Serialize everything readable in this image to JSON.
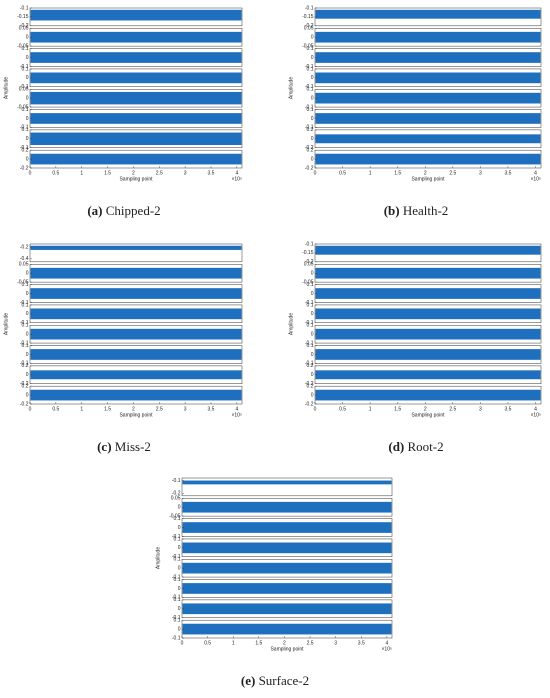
{
  "chart_data": {
    "type": "band",
    "xlabel": "Sampling point",
    "ylabel": "Amplitude",
    "x_scale_label": "×10⁵",
    "xlim": [
      0,
      4.1
    ],
    "xticks": [
      0,
      0.5,
      1,
      1.5,
      2,
      2.5,
      3,
      3.5,
      4
    ],
    "color": "#1f6fbf",
    "panels": [
      {
        "caption_label": "(a)",
        "caption_text": "Chipped-2",
        "plots": [
          {
            "ylim": [
              -0.2,
              -0.1
            ],
            "yticks": [
              -0.1,
              -0.15,
              -0.2
            ],
            "band": [
              -0.17,
              -0.11
            ]
          },
          {
            "ylim": [
              -0.05,
              0.05
            ],
            "yticks": [
              0.05,
              0,
              -0.05
            ],
            "band": [
              -0.03,
              0.03
            ]
          },
          {
            "ylim": [
              -0.1,
              0.1
            ],
            "yticks": [
              0.1,
              0,
              -0.1
            ],
            "band": [
              -0.06,
              0.06
            ]
          },
          {
            "ylim": [
              -0.1,
              0.1
            ],
            "yticks": [
              0.1,
              0,
              -0.1
            ],
            "band": [
              -0.06,
              0.06
            ]
          },
          {
            "ylim": [
              -0.05,
              0.05
            ],
            "yticks": [
              0.05,
              0,
              -0.05
            ],
            "band": [
              -0.035,
              0.035
            ]
          },
          {
            "ylim": [
              -0.1,
              0.1
            ],
            "yticks": [
              0.1,
              0,
              -0.1
            ],
            "band": [
              -0.06,
              0.06
            ]
          },
          {
            "ylim": [
              -0.1,
              0.1
            ],
            "yticks": [
              0.1,
              0,
              -0.1
            ],
            "band": [
              -0.07,
              0.07
            ]
          },
          {
            "ylim": [
              -0.2,
              0.2
            ],
            "yticks": [
              0.2,
              0,
              -0.2
            ],
            "band": [
              -0.12,
              0.12
            ]
          }
        ]
      },
      {
        "caption_label": "(b)",
        "caption_text": "Health-2",
        "plots": [
          {
            "ylim": [
              -0.2,
              -0.1
            ],
            "yticks": [
              -0.1,
              -0.15,
              -0.2
            ],
            "band": [
              -0.16,
              -0.11
            ]
          },
          {
            "ylim": [
              -0.05,
              0.05
            ],
            "yticks": [
              0.05,
              0,
              -0.05
            ],
            "band": [
              -0.03,
              0.03
            ]
          },
          {
            "ylim": [
              -0.1,
              0.1
            ],
            "yticks": [
              0.1,
              0,
              -0.1
            ],
            "band": [
              -0.06,
              0.06
            ]
          },
          {
            "ylim": [
              -0.1,
              0.1
            ],
            "yticks": [
              0.1,
              0,
              -0.1
            ],
            "band": [
              -0.06,
              0.06
            ]
          },
          {
            "ylim": [
              -0.1,
              0.1
            ],
            "yticks": [
              0.1,
              0,
              -0.1
            ],
            "band": [
              -0.06,
              0.06
            ]
          },
          {
            "ylim": [
              -0.1,
              0.1
            ],
            "yticks": [
              0.1,
              0,
              -0.1
            ],
            "band": [
              -0.06,
              0.06
            ]
          },
          {
            "ylim": [
              -0.2,
              0.2
            ],
            "yticks": [
              0.2,
              0,
              -0.2
            ],
            "band": [
              -0.1,
              0.1
            ]
          },
          {
            "ylim": [
              -0.2,
              0.2
            ],
            "yticks": [
              0.2,
              0,
              -0.2
            ],
            "band": [
              -0.12,
              0.12
            ]
          }
        ]
      },
      {
        "caption_label": "(c)",
        "caption_text": "Miss-2",
        "plots": [
          {
            "ylim": [
              -0.45,
              -0.15
            ],
            "yticks": [
              -0.2,
              -0.4
            ],
            "band": [
              -0.25,
              -0.18
            ]
          },
          {
            "ylim": [
              -0.05,
              0.05
            ],
            "yticks": [
              0.05,
              0,
              -0.05
            ],
            "band": [
              -0.03,
              0.03
            ]
          },
          {
            "ylim": [
              -0.1,
              0.1
            ],
            "yticks": [
              0.1,
              0,
              -0.1
            ],
            "band": [
              -0.06,
              0.06
            ]
          },
          {
            "ylim": [
              -0.1,
              0.1
            ],
            "yticks": [
              0.1,
              0,
              -0.1
            ],
            "band": [
              -0.06,
              0.06
            ]
          },
          {
            "ylim": [
              -0.1,
              0.1
            ],
            "yticks": [
              0.1,
              0,
              -0.1
            ],
            "band": [
              -0.06,
              0.06
            ]
          },
          {
            "ylim": [
              -0.1,
              0.1
            ],
            "yticks": [
              0.1,
              0,
              -0.1
            ],
            "band": [
              -0.06,
              0.06
            ]
          },
          {
            "ylim": [
              -0.2,
              0.2
            ],
            "yticks": [
              0.2,
              0,
              -0.2
            ],
            "band": [
              -0.1,
              0.1
            ]
          },
          {
            "ylim": [
              -0.2,
              0.2
            ],
            "yticks": [
              0.2,
              0,
              -0.2
            ],
            "band": [
              -0.12,
              0.12
            ]
          }
        ]
      },
      {
        "caption_label": "(d)",
        "caption_text": "Root-2",
        "plots": [
          {
            "ylim": [
              -0.2,
              -0.1
            ],
            "yticks": [
              -0.1,
              -0.15,
              -0.2
            ],
            "band": [
              -0.16,
              -0.11
            ]
          },
          {
            "ylim": [
              -0.05,
              0.05
            ],
            "yticks": [
              0.05,
              0,
              -0.05
            ],
            "band": [
              -0.03,
              0.03
            ]
          },
          {
            "ylim": [
              -0.1,
              0.1
            ],
            "yticks": [
              0.1,
              0,
              -0.1
            ],
            "band": [
              -0.06,
              0.06
            ]
          },
          {
            "ylim": [
              -0.1,
              0.1
            ],
            "yticks": [
              0.1,
              0,
              -0.1
            ],
            "band": [
              -0.06,
              0.06
            ]
          },
          {
            "ylim": [
              -0.1,
              0.1
            ],
            "yticks": [
              0.1,
              0,
              -0.1
            ],
            "band": [
              -0.06,
              0.06
            ]
          },
          {
            "ylim": [
              -0.1,
              0.1
            ],
            "yticks": [
              0.1,
              0,
              -0.1
            ],
            "band": [
              -0.06,
              0.06
            ]
          },
          {
            "ylim": [
              -0.2,
              0.2
            ],
            "yticks": [
              0.2,
              0,
              -0.2
            ],
            "band": [
              -0.1,
              0.1
            ]
          },
          {
            "ylim": [
              -0.2,
              0.2
            ],
            "yticks": [
              0.2,
              0,
              -0.2
            ],
            "band": [
              -0.12,
              0.12
            ]
          }
        ]
      },
      {
        "caption_label": "(e)",
        "caption_text": "Surface-2",
        "plots": [
          {
            "ylim": [
              -0.22,
              -0.08
            ],
            "yticks": [
              -0.1,
              -0.2
            ],
            "band": [
              -0.13,
              -0.1
            ]
          },
          {
            "ylim": [
              -0.05,
              0.05
            ],
            "yticks": [
              0.05,
              0,
              -0.05
            ],
            "band": [
              -0.03,
              0.03
            ]
          },
          {
            "ylim": [
              -0.1,
              0.1
            ],
            "yticks": [
              0.1,
              0,
              -0.1
            ],
            "band": [
              -0.06,
              0.06
            ]
          },
          {
            "ylim": [
              -0.1,
              0.1
            ],
            "yticks": [
              0.1,
              0,
              -0.1
            ],
            "band": [
              -0.06,
              0.06
            ]
          },
          {
            "ylim": [
              -0.1,
              0.1
            ],
            "yticks": [
              0.1,
              0,
              -0.1
            ],
            "band": [
              -0.06,
              0.06
            ]
          },
          {
            "ylim": [
              -0.1,
              0.1
            ],
            "yticks": [
              0.1,
              0,
              -0.1
            ],
            "band": [
              -0.06,
              0.06
            ]
          },
          {
            "ylim": [
              -0.1,
              0.1
            ],
            "yticks": [
              0.1,
              0,
              -0.1
            ],
            "band": [
              -0.06,
              0.06
            ]
          },
          {
            "ylim": [
              -0.1,
              0.1
            ],
            "yticks": [
              0.1,
              0,
              -0.1
            ],
            "band": [
              -0.06,
              0.06
            ]
          }
        ]
      }
    ]
  }
}
